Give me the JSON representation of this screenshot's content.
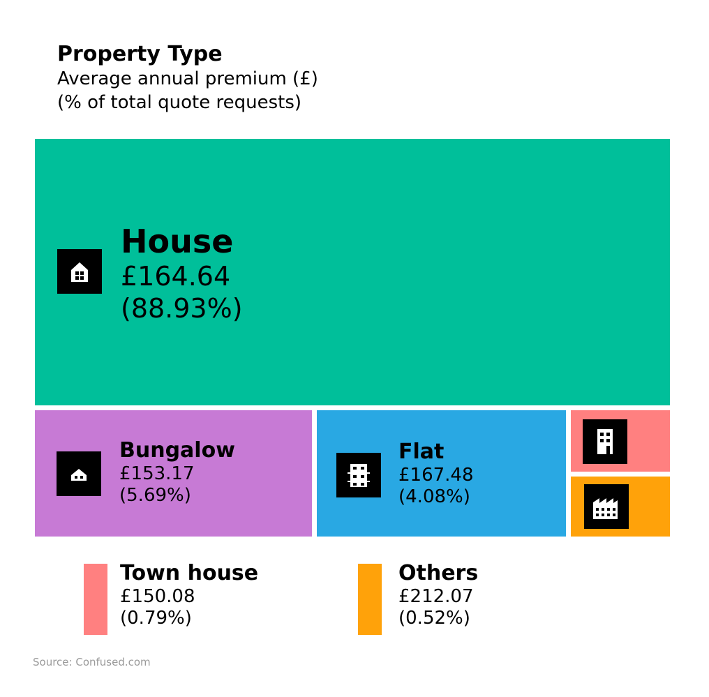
{
  "header": {
    "title": "Property Type",
    "subtitle": "Average annual premium (£)",
    "subtitle2": "(% of total quote requests)"
  },
  "chart_data": {
    "type": "treemap",
    "items": [
      {
        "name": "House",
        "premium": "£164.64",
        "share_label": "(88.93%)",
        "share": 88.93,
        "color": "#00bf9a",
        "icon": "house-icon"
      },
      {
        "name": "Bungalow",
        "premium": "£153.17",
        "share_label": "(5.69%)",
        "share": 5.69,
        "color": "#c77ad5",
        "icon": "bungalow-icon"
      },
      {
        "name": "Flat",
        "premium": "£167.48",
        "share_label": "(4.08%)",
        "share": 4.08,
        "color": "#29a8e3",
        "icon": "flat-icon"
      },
      {
        "name": "Town house",
        "premium": "£150.08",
        "share_label": "(0.79%)",
        "share": 0.79,
        "color": "#ff8080",
        "icon": "town-house-icon"
      },
      {
        "name": "Others",
        "premium": "£212.07",
        "share_label": "(0.52%)",
        "share": 0.52,
        "color": "#ffa20a",
        "icon": "factory-icon"
      }
    ]
  },
  "source": "Source: Confused.com"
}
